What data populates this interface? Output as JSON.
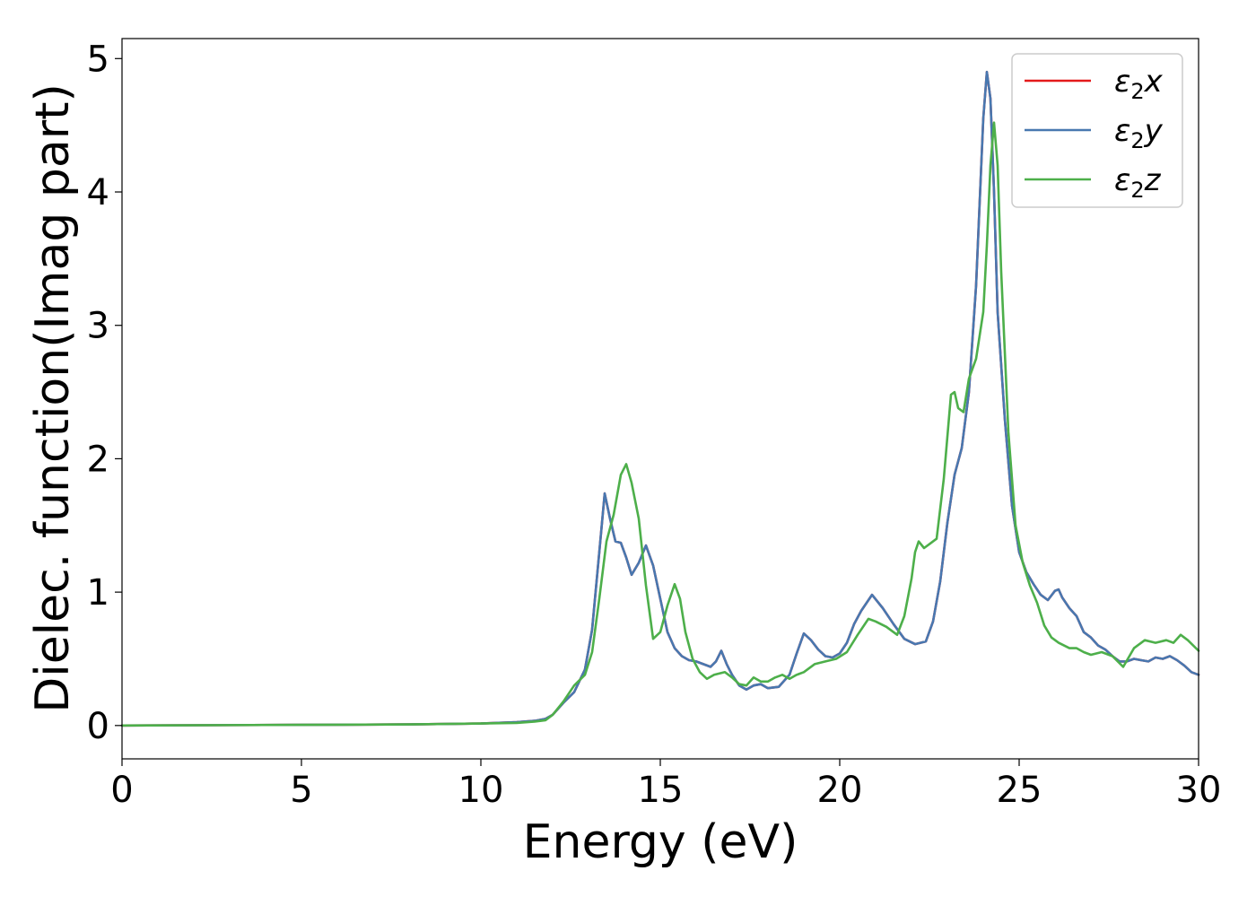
{
  "chart_data": {
    "type": "line",
    "title": "",
    "xlabel": "Energy (eV)",
    "ylabel": "Dielec. function(Imag part)",
    "xlim": [
      0,
      30
    ],
    "ylim": [
      -0.25,
      5.15
    ],
    "xticks": [
      0,
      5,
      10,
      15,
      20,
      25,
      30
    ],
    "yticks": [
      0,
      1,
      2,
      3,
      4,
      5
    ],
    "grid": false,
    "legend_position": "top-right",
    "series": [
      {
        "name": "ε₂x",
        "legend_base": "ε",
        "legend_sub": "2",
        "legend_tail": "x",
        "color": "#e41a1c",
        "x": [
          0,
          5,
          8,
          10,
          11,
          11.5,
          11.8,
          12,
          12.3,
          12.6,
          12.9,
          13.1,
          13.3,
          13.45,
          13.6,
          13.75,
          13.9,
          14.05,
          14.2,
          14.4,
          14.6,
          14.8,
          15.0,
          15.2,
          15.4,
          15.6,
          15.8,
          16.0,
          16.2,
          16.4,
          16.55,
          16.7,
          16.85,
          17.0,
          17.2,
          17.4,
          17.6,
          17.8,
          18.0,
          18.3,
          18.6,
          18.8,
          19.0,
          19.2,
          19.4,
          19.6,
          19.8,
          20.0,
          20.2,
          20.4,
          20.6,
          20.9,
          21.2,
          21.5,
          21.8,
          22.1,
          22.4,
          22.6,
          22.8,
          23.0,
          23.2,
          23.4,
          23.6,
          23.8,
          24.0,
          24.1,
          24.2,
          24.3,
          24.4,
          24.6,
          24.8,
          25.0,
          25.2,
          25.4,
          25.6,
          25.8,
          26.0,
          26.1,
          26.2,
          26.4,
          26.6,
          26.8,
          27.0,
          27.2,
          27.4,
          27.6,
          27.8,
          28.0,
          28.2,
          28.4,
          28.6,
          28.8,
          29.0,
          29.2,
          29.4,
          29.6,
          29.8,
          30.0
        ],
        "y": [
          0,
          0.005,
          0.008,
          0.015,
          0.025,
          0.035,
          0.05,
          0.08,
          0.17,
          0.25,
          0.42,
          0.72,
          1.3,
          1.74,
          1.55,
          1.38,
          1.37,
          1.26,
          1.13,
          1.22,
          1.35,
          1.2,
          0.95,
          0.7,
          0.58,
          0.52,
          0.49,
          0.48,
          0.46,
          0.44,
          0.48,
          0.56,
          0.46,
          0.38,
          0.3,
          0.27,
          0.3,
          0.31,
          0.28,
          0.29,
          0.38,
          0.54,
          0.69,
          0.64,
          0.57,
          0.52,
          0.51,
          0.54,
          0.62,
          0.76,
          0.86,
          0.98,
          0.88,
          0.76,
          0.65,
          0.61,
          0.63,
          0.78,
          1.08,
          1.52,
          1.88,
          2.08,
          2.5,
          3.3,
          4.55,
          4.9,
          4.7,
          4.0,
          3.1,
          2.3,
          1.65,
          1.3,
          1.15,
          1.06,
          0.98,
          0.94,
          1.01,
          1.02,
          0.96,
          0.88,
          0.82,
          0.7,
          0.66,
          0.6,
          0.57,
          0.52,
          0.48,
          0.48,
          0.5,
          0.49,
          0.48,
          0.51,
          0.5,
          0.52,
          0.49,
          0.45,
          0.4,
          0.38
        ]
      },
      {
        "name": "ε₂y",
        "legend_base": "ε",
        "legend_sub": "2",
        "legend_tail": "y",
        "color": "#4878b0",
        "x": [
          0,
          5,
          8,
          10,
          11,
          11.5,
          11.8,
          12,
          12.3,
          12.6,
          12.9,
          13.1,
          13.3,
          13.45,
          13.6,
          13.75,
          13.9,
          14.05,
          14.2,
          14.4,
          14.6,
          14.8,
          15.0,
          15.2,
          15.4,
          15.6,
          15.8,
          16.0,
          16.2,
          16.4,
          16.55,
          16.7,
          16.85,
          17.0,
          17.2,
          17.4,
          17.6,
          17.8,
          18.0,
          18.3,
          18.6,
          18.8,
          19.0,
          19.2,
          19.4,
          19.6,
          19.8,
          20.0,
          20.2,
          20.4,
          20.6,
          20.9,
          21.2,
          21.5,
          21.8,
          22.1,
          22.4,
          22.6,
          22.8,
          23.0,
          23.2,
          23.4,
          23.6,
          23.8,
          24.0,
          24.1,
          24.2,
          24.3,
          24.4,
          24.6,
          24.8,
          25.0,
          25.2,
          25.4,
          25.6,
          25.8,
          26.0,
          26.1,
          26.2,
          26.4,
          26.6,
          26.8,
          27.0,
          27.2,
          27.4,
          27.6,
          27.8,
          28.0,
          28.2,
          28.4,
          28.6,
          28.8,
          29.0,
          29.2,
          29.4,
          29.6,
          29.8,
          30.0
        ],
        "y": [
          0,
          0.005,
          0.008,
          0.015,
          0.025,
          0.035,
          0.05,
          0.08,
          0.17,
          0.25,
          0.42,
          0.72,
          1.3,
          1.74,
          1.55,
          1.38,
          1.37,
          1.26,
          1.13,
          1.22,
          1.35,
          1.2,
          0.95,
          0.7,
          0.58,
          0.52,
          0.49,
          0.48,
          0.46,
          0.44,
          0.48,
          0.56,
          0.46,
          0.38,
          0.3,
          0.27,
          0.3,
          0.31,
          0.28,
          0.29,
          0.38,
          0.54,
          0.69,
          0.64,
          0.57,
          0.52,
          0.51,
          0.54,
          0.62,
          0.76,
          0.86,
          0.98,
          0.88,
          0.76,
          0.65,
          0.61,
          0.63,
          0.78,
          1.08,
          1.52,
          1.88,
          2.08,
          2.5,
          3.3,
          4.55,
          4.9,
          4.7,
          4.0,
          3.1,
          2.3,
          1.65,
          1.3,
          1.15,
          1.06,
          0.98,
          0.94,
          1.01,
          1.02,
          0.96,
          0.88,
          0.82,
          0.7,
          0.66,
          0.6,
          0.57,
          0.52,
          0.48,
          0.48,
          0.5,
          0.49,
          0.48,
          0.51,
          0.5,
          0.52,
          0.49,
          0.45,
          0.4,
          0.38
        ]
      },
      {
        "name": "ε₂z",
        "legend_base": "ε",
        "legend_sub": "2",
        "legend_tail": "z",
        "color": "#4daf4a",
        "x": [
          0,
          5,
          8,
          10,
          11,
          11.5,
          11.8,
          12,
          12.3,
          12.6,
          12.9,
          13.1,
          13.3,
          13.5,
          13.7,
          13.9,
          14.05,
          14.2,
          14.4,
          14.6,
          14.8,
          15.0,
          15.2,
          15.4,
          15.55,
          15.7,
          15.9,
          16.1,
          16.3,
          16.5,
          16.8,
          17.0,
          17.2,
          17.4,
          17.6,
          17.8,
          18.0,
          18.2,
          18.4,
          18.6,
          18.8,
          19.0,
          19.3,
          19.6,
          19.9,
          20.2,
          20.5,
          20.8,
          21.0,
          21.3,
          21.6,
          21.8,
          22.0,
          22.1,
          22.2,
          22.35,
          22.5,
          22.7,
          22.9,
          23.1,
          23.2,
          23.3,
          23.45,
          23.6,
          23.8,
          24.0,
          24.1,
          24.2,
          24.3,
          24.4,
          24.5,
          24.7,
          24.9,
          25.1,
          25.3,
          25.5,
          25.7,
          25.9,
          26.1,
          26.4,
          26.6,
          26.8,
          27.0,
          27.3,
          27.6,
          27.9,
          28.2,
          28.5,
          28.8,
          29.1,
          29.3,
          29.5,
          29.7,
          30.0
        ],
        "y": [
          0,
          0.005,
          0.008,
          0.015,
          0.02,
          0.03,
          0.04,
          0.08,
          0.18,
          0.3,
          0.38,
          0.55,
          0.95,
          1.38,
          1.58,
          1.88,
          1.96,
          1.82,
          1.55,
          1.05,
          0.65,
          0.7,
          0.9,
          1.06,
          0.95,
          0.7,
          0.5,
          0.4,
          0.35,
          0.38,
          0.4,
          0.36,
          0.31,
          0.3,
          0.36,
          0.33,
          0.33,
          0.36,
          0.38,
          0.35,
          0.38,
          0.4,
          0.46,
          0.48,
          0.5,
          0.55,
          0.68,
          0.8,
          0.78,
          0.74,
          0.68,
          0.82,
          1.1,
          1.3,
          1.38,
          1.33,
          1.36,
          1.4,
          1.85,
          2.48,
          2.5,
          2.38,
          2.35,
          2.6,
          2.75,
          3.1,
          3.6,
          4.2,
          4.52,
          4.2,
          3.4,
          2.2,
          1.5,
          1.22,
          1.05,
          0.92,
          0.75,
          0.66,
          0.62,
          0.58,
          0.58,
          0.55,
          0.53,
          0.55,
          0.52,
          0.44,
          0.58,
          0.64,
          0.62,
          0.64,
          0.62,
          0.68,
          0.64,
          0.56
        ]
      }
    ]
  }
}
